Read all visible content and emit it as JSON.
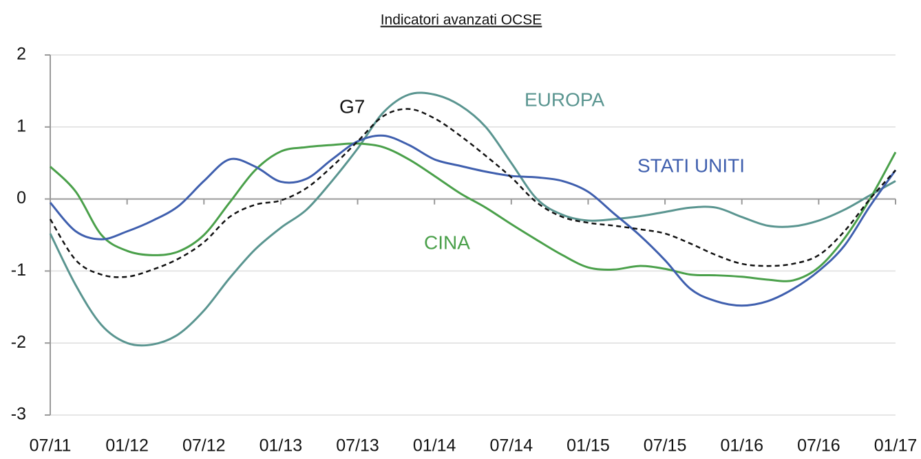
{
  "chart_data": {
    "type": "line",
    "title": "Indicatori avanzati OCSE",
    "categories": [
      "07/11",
      null,
      null,
      "01/12",
      null,
      null,
      "07/12",
      null,
      null,
      "01/13",
      null,
      null,
      "07/13",
      null,
      null,
      "01/14",
      null,
      null,
      "07/14",
      null,
      null,
      "01/15",
      null,
      null,
      "07/15",
      null,
      null,
      "01/16",
      null,
      null,
      "07/16",
      null,
      null,
      "01/17"
    ],
    "series": [
      {
        "name": "G7",
        "color": "#111111",
        "dashed": true,
        "values": [
          -0.28,
          -0.85,
          -1.05,
          -1.08,
          -0.98,
          -0.83,
          -0.6,
          -0.25,
          -0.08,
          -0.02,
          0.15,
          0.45,
          0.8,
          1.15,
          1.25,
          1.12,
          0.88,
          0.6,
          0.3,
          -0.05,
          -0.25,
          -0.33,
          -0.37,
          -0.42,
          -0.48,
          -0.62,
          -0.78,
          -0.9,
          -0.93,
          -0.9,
          -0.78,
          -0.45,
          0.0,
          0.4
        ]
      },
      {
        "name": "EUROPA",
        "color": "#5a9590",
        "values": [
          -0.48,
          -1.2,
          -1.75,
          -2.0,
          -2.02,
          -1.88,
          -1.55,
          -1.1,
          -0.7,
          -0.4,
          -0.15,
          0.25,
          0.7,
          1.2,
          1.45,
          1.45,
          1.3,
          1.0,
          0.5,
          0.0,
          -0.22,
          -0.3,
          -0.28,
          -0.24,
          -0.18,
          -0.12,
          -0.12,
          -0.25,
          -0.37,
          -0.38,
          -0.3,
          -0.15,
          0.05,
          0.25
        ]
      },
      {
        "name": "STATI UNITI",
        "color": "#3f5fae",
        "values": [
          -0.05,
          -0.45,
          -0.56,
          -0.45,
          -0.3,
          -0.1,
          0.25,
          0.55,
          0.45,
          0.24,
          0.28,
          0.55,
          0.8,
          0.88,
          0.75,
          0.55,
          0.46,
          0.38,
          0.32,
          0.3,
          0.25,
          0.1,
          -0.2,
          -0.5,
          -0.85,
          -1.25,
          -1.42,
          -1.48,
          -1.42,
          -1.25,
          -1.0,
          -0.65,
          -0.1,
          0.4
        ]
      },
      {
        "name": "CINA",
        "color": "#4aa04a",
        "values": [
          0.45,
          0.1,
          -0.5,
          -0.72,
          -0.78,
          -0.73,
          -0.5,
          -0.05,
          0.4,
          0.66,
          0.72,
          0.75,
          0.77,
          0.72,
          0.55,
          0.32,
          0.08,
          -0.12,
          -0.35,
          -0.57,
          -0.78,
          -0.95,
          -0.98,
          -0.93,
          -0.97,
          -1.05,
          -1.06,
          -1.08,
          -1.12,
          -1.13,
          -0.95,
          -0.55,
          0.0,
          0.65
        ]
      }
    ],
    "ylim": [
      -3,
      2
    ],
    "yticks": [
      -3,
      -2,
      -1,
      0,
      1,
      2
    ],
    "grid": true
  }
}
